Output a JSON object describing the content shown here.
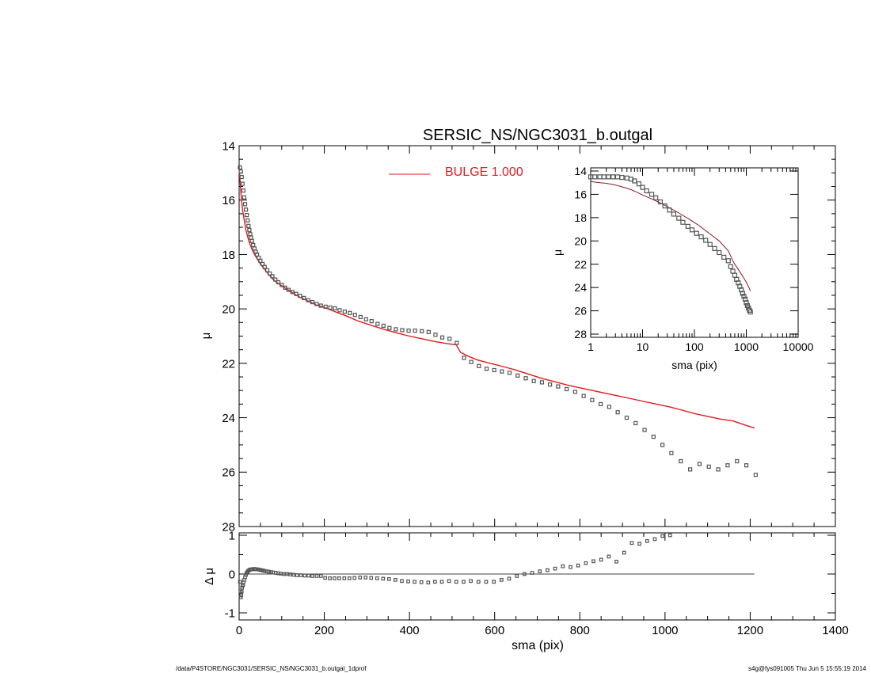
{
  "title": "SERSIC_NS/NGC3031_b.outgal",
  "footer": {
    "path": "/data/P4STORE/NGC3031/SERSIC_NS/NGC3031_b.outgal_1dprof",
    "stamp": "s4g@fys091005  Thu Jun  5 15:55:19 2014"
  },
  "colors": {
    "model": "#e41a1c",
    "data": "#555555",
    "axes": "#000000",
    "inset_model": "#8b1a1a"
  },
  "chart_data": [
    {
      "type": "scatter",
      "panel": "main",
      "title": "SERSIC_NS/NGC3031_b.outgal",
      "xlabel": "",
      "ylabel": "μ",
      "xlim": [
        0,
        1400
      ],
      "ylim": [
        28,
        14
      ],
      "y_inverted": true,
      "x_ticks": [
        0,
        200,
        400,
        600,
        800,
        1000,
        1200,
        1400
      ],
      "y_ticks": [
        14,
        16,
        18,
        20,
        22,
        24,
        26,
        28
      ],
      "legend": {
        "placement": "top-center",
        "entries": [
          {
            "label": "BULGE  1.000",
            "color": "#e41a1c"
          }
        ]
      },
      "series": [
        {
          "kind": "points",
          "x": [
            2,
            4,
            6,
            8,
            10,
            12,
            14,
            16,
            18,
            20,
            22,
            24,
            26,
            28,
            30,
            33,
            36,
            39,
            42,
            46,
            50,
            55,
            60,
            66,
            72,
            78,
            85,
            92,
            100,
            108,
            116,
            125,
            134,
            143,
            152,
            162,
            172,
            182,
            192,
            203,
            214,
            225,
            236,
            248,
            260,
            272,
            285,
            298,
            311,
            325,
            339,
            353,
            368,
            383,
            398,
            413,
            429,
            445,
            461,
            477,
            494,
            511,
            528,
            545,
            563,
            581,
            599,
            617,
            635,
            654,
            673,
            692,
            711,
            730,
            749,
            769,
            789,
            809,
            829,
            849,
            869,
            889,
            910,
            931,
            952,
            973,
            994,
            1015,
            1037,
            1059,
            1081,
            1103,
            1125,
            1147,
            1169,
            1191,
            1213
          ],
          "y": [
            14.8,
            14.95,
            15.15,
            15.4,
            15.65,
            15.9,
            16.15,
            16.35,
            16.55,
            16.75,
            16.95,
            17.1,
            17.25,
            17.38,
            17.5,
            17.65,
            17.78,
            17.9,
            18.0,
            18.12,
            18.23,
            18.35,
            18.46,
            18.58,
            18.7,
            18.8,
            18.92,
            19.02,
            19.12,
            19.22,
            19.3,
            19.38,
            19.45,
            19.52,
            19.6,
            19.68,
            19.75,
            19.82,
            19.88,
            19.92,
            19.95,
            19.98,
            20.05,
            20.1,
            20.15,
            20.22,
            20.3,
            20.38,
            20.45,
            20.55,
            20.62,
            20.7,
            20.75,
            20.78,
            20.8,
            20.8,
            20.82,
            20.85,
            20.95,
            21.05,
            21.1,
            21.25,
            21.8,
            21.95,
            22.1,
            22.2,
            22.25,
            22.3,
            22.35,
            22.45,
            22.55,
            22.65,
            22.7,
            22.78,
            22.85,
            22.95,
            23.05,
            23.2,
            23.35,
            23.5,
            23.6,
            23.8,
            24.0,
            24.2,
            24.45,
            24.7,
            25.0,
            25.3,
            25.6,
            25.9,
            25.7,
            25.8,
            25.9,
            25.75,
            25.6,
            25.75,
            26.1
          ]
        },
        {
          "kind": "line",
          "name": "BULGE  1.000",
          "x": [
            1,
            3,
            5,
            8,
            12,
            16,
            20,
            25,
            30,
            36,
            42,
            50,
            60,
            70,
            82,
            95,
            110,
            125,
            140,
            160,
            180,
            200,
            225,
            250,
            280,
            310,
            340,
            370,
            400,
            430,
            460,
            490,
            510,
            520,
            540,
            560,
            590,
            620,
            650,
            680,
            710,
            740,
            770,
            800,
            830,
            860,
            890,
            920,
            950,
            980,
            1010,
            1040,
            1070,
            1100,
            1130,
            1160,
            1190,
            1210
          ],
          "y": [
            15.0,
            15.45,
            15.9,
            16.35,
            16.75,
            17.1,
            17.35,
            17.6,
            17.8,
            18.0,
            18.15,
            18.35,
            18.55,
            18.75,
            18.95,
            19.1,
            19.25,
            19.4,
            19.55,
            19.7,
            19.85,
            19.95,
            20.1,
            20.25,
            20.45,
            20.6,
            20.75,
            20.88,
            21.0,
            21.1,
            21.2,
            21.28,
            21.32,
            21.6,
            21.75,
            21.88,
            22.0,
            22.12,
            22.25,
            22.4,
            22.55,
            22.67,
            22.8,
            22.9,
            23.0,
            23.1,
            23.2,
            23.3,
            23.4,
            23.5,
            23.6,
            23.72,
            23.85,
            23.95,
            24.05,
            24.12,
            24.28,
            24.38
          ]
        }
      ]
    },
    {
      "type": "scatter",
      "panel": "residual",
      "xlabel": "sma (pix)",
      "ylabel": "Δ μ",
      "xlim": [
        0,
        1400
      ],
      "ylim": [
        -1,
        1
      ],
      "x_ticks": [
        0,
        200,
        400,
        600,
        800,
        1000,
        1200,
        1400
      ],
      "y_ticks": [
        -1,
        0,
        1
      ],
      "zero_line": {
        "x": [
          0,
          1210
        ],
        "y": 0
      },
      "series": [
        {
          "kind": "points",
          "x": [
            2,
            3,
            4,
            5,
            6,
            7,
            8,
            9,
            10,
            12,
            14,
            16,
            18,
            20,
            22,
            25,
            28,
            31,
            34,
            37,
            40,
            44,
            48,
            52,
            56,
            60,
            65,
            70,
            75,
            80,
            86,
            92,
            98,
            105,
            112,
            120,
            128,
            136,
            145,
            154,
            163,
            172,
            182,
            192,
            202,
            213,
            224,
            235,
            247,
            259,
            271,
            284,
            297,
            310,
            324,
            338,
            352,
            367,
            382,
            397,
            412,
            428,
            444,
            460,
            476,
            493,
            510,
            527,
            544,
            562,
            580,
            598,
            616,
            634,
            652,
            670,
            688,
            706,
            724,
            742,
            760,
            778,
            796,
            814,
            832,
            850,
            868,
            886,
            904,
            922,
            940,
            958,
            976,
            994,
            1012
          ],
          "y": [
            -0.2,
            -0.45,
            -0.6,
            -0.55,
            -0.45,
            -0.35,
            -0.3,
            -0.28,
            -0.22,
            -0.15,
            -0.08,
            -0.02,
            0.03,
            0.06,
            0.09,
            0.11,
            0.12,
            0.12,
            0.13,
            0.13,
            0.12,
            0.12,
            0.11,
            0.1,
            0.09,
            0.08,
            0.07,
            0.06,
            0.05,
            0.04,
            0.03,
            0.02,
            0.01,
            0.0,
            0.0,
            -0.01,
            -0.02,
            -0.03,
            -0.03,
            -0.04,
            -0.04,
            -0.05,
            -0.05,
            -0.05,
            -0.1,
            -0.11,
            -0.11,
            -0.11,
            -0.11,
            -0.11,
            -0.1,
            -0.09,
            -0.09,
            -0.1,
            -0.11,
            -0.12,
            -0.13,
            -0.15,
            -0.18,
            -0.19,
            -0.2,
            -0.21,
            -0.22,
            -0.2,
            -0.2,
            -0.18,
            -0.2,
            -0.2,
            -0.18,
            -0.2,
            -0.2,
            -0.2,
            -0.15,
            -0.12,
            -0.05,
            0.0,
            0.03,
            0.07,
            0.1,
            0.14,
            0.2,
            0.18,
            0.22,
            0.28,
            0.33,
            0.37,
            0.45,
            0.32,
            0.55,
            0.8,
            0.78,
            0.85,
            0.9,
            0.98,
            1.0
          ]
        }
      ]
    },
    {
      "type": "scatter",
      "panel": "inset",
      "xlabel": "sma (pix)",
      "ylabel": "μ",
      "x_scale": "log",
      "xlim": [
        1,
        10000
      ],
      "ylim": [
        28,
        14
      ],
      "y_inverted": true,
      "x_ticks": [
        1,
        10,
        100,
        1000,
        10000
      ],
      "y_ticks": [
        14,
        16,
        18,
        20,
        22,
        24,
        26,
        28
      ],
      "series": [
        {
          "kind": "points",
          "x": [
            1,
            1.2,
            1.5,
            1.8,
            2.2,
            2.7,
            3.3,
            4,
            5,
            6,
            7,
            8.5,
            10,
            12,
            15,
            18,
            22,
            27,
            33,
            40,
            50,
            60,
            75,
            90,
            110,
            135,
            165,
            200,
            245,
            300,
            370,
            450,
            500,
            550,
            600,
            650,
            700,
            750,
            800,
            850,
            900,
            950,
            1000,
            1050,
            1100,
            1150,
            1200
          ],
          "y": [
            14.5,
            14.5,
            14.5,
            14.5,
            14.5,
            14.5,
            14.5,
            14.55,
            14.6,
            14.7,
            14.85,
            15.1,
            15.4,
            15.7,
            16.0,
            16.3,
            16.65,
            17.0,
            17.35,
            17.7,
            18.05,
            18.4,
            18.75,
            19.05,
            19.35,
            19.65,
            19.95,
            20.3,
            20.65,
            21.0,
            21.4,
            21.7,
            22.2,
            22.6,
            22.95,
            23.3,
            23.6,
            23.9,
            24.2,
            24.5,
            24.75,
            25.0,
            25.3,
            25.55,
            25.75,
            25.95,
            26.1
          ]
        },
        {
          "kind": "line",
          "x": [
            1,
            1.5,
            2,
            3,
            4,
            6,
            8,
            10,
            15,
            20,
            30,
            50,
            80,
            120,
            200,
            300,
            450,
            500,
            550,
            600,
            700,
            800,
            900,
            1000,
            1100,
            1200
          ],
          "y": [
            14.9,
            15.0,
            15.05,
            15.2,
            15.35,
            15.6,
            15.85,
            16.05,
            16.4,
            16.65,
            17.05,
            17.6,
            18.15,
            18.65,
            19.4,
            20.0,
            20.85,
            21.3,
            21.7,
            22.0,
            22.45,
            22.85,
            23.2,
            23.55,
            23.9,
            24.3
          ]
        }
      ]
    }
  ]
}
